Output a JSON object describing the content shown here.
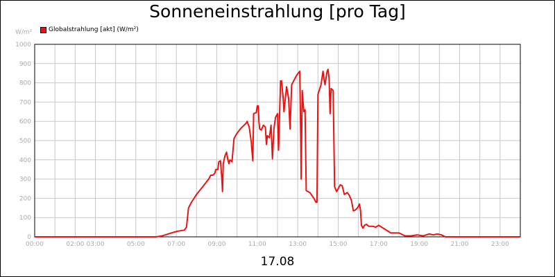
{
  "chart_data": {
    "type": "line",
    "title": "Sonneneinstrahlung [pro Tag]",
    "unit_label": "W/m²",
    "date_label": "17.08",
    "series": [
      {
        "name": "Globalstrahlung [akt] (W/m²)",
        "color": "#ee1111",
        "points": [
          [
            0,
            0
          ],
          [
            6.0,
            0
          ],
          [
            6.3,
            5
          ],
          [
            6.6,
            15
          ],
          [
            6.9,
            25
          ],
          [
            7.1,
            30
          ],
          [
            7.4,
            35
          ],
          [
            7.5,
            50
          ],
          [
            7.6,
            150
          ],
          [
            7.75,
            180
          ],
          [
            8.0,
            220
          ],
          [
            8.3,
            260
          ],
          [
            8.6,
            300
          ],
          [
            8.7,
            320
          ],
          [
            8.8,
            320
          ],
          [
            8.9,
            330
          ],
          [
            8.95,
            350
          ],
          [
            9.05,
            350
          ],
          [
            9.1,
            390
          ],
          [
            9.18,
            395
          ],
          [
            9.2,
            370
          ],
          [
            9.25,
            300
          ],
          [
            9.28,
            235
          ],
          [
            9.32,
            380
          ],
          [
            9.4,
            420
          ],
          [
            9.48,
            440
          ],
          [
            9.55,
            400
          ],
          [
            9.6,
            380
          ],
          [
            9.65,
            400
          ],
          [
            9.75,
            390
          ],
          [
            9.85,
            510
          ],
          [
            9.95,
            530
          ],
          [
            10.05,
            545
          ],
          [
            10.2,
            565
          ],
          [
            10.3,
            575
          ],
          [
            10.45,
            590
          ],
          [
            10.5,
            600
          ],
          [
            10.6,
            570
          ],
          [
            10.7,
            495
          ],
          [
            10.78,
            395
          ],
          [
            10.82,
            640
          ],
          [
            10.95,
            645
          ],
          [
            11.0,
            680
          ],
          [
            11.05,
            680
          ],
          [
            11.08,
            600
          ],
          [
            11.12,
            560
          ],
          [
            11.2,
            555
          ],
          [
            11.3,
            580
          ],
          [
            11.4,
            570
          ],
          [
            11.45,
            480
          ],
          [
            11.5,
            525
          ],
          [
            11.6,
            515
          ],
          [
            11.68,
            580
          ],
          [
            11.75,
            405
          ],
          [
            11.82,
            560
          ],
          [
            11.9,
            620
          ],
          [
            12.0,
            640
          ],
          [
            12.05,
            450
          ],
          [
            12.15,
            810
          ],
          [
            12.2,
            810
          ],
          [
            12.28,
            720
          ],
          [
            12.32,
            650
          ],
          [
            12.45,
            780
          ],
          [
            12.55,
            720
          ],
          [
            12.62,
            560
          ],
          [
            12.7,
            790
          ],
          [
            12.8,
            810
          ],
          [
            12.95,
            840
          ],
          [
            13.1,
            860
          ],
          [
            13.15,
            520
          ],
          [
            13.17,
            300
          ],
          [
            13.22,
            760
          ],
          [
            13.3,
            650
          ],
          [
            13.36,
            660
          ],
          [
            13.42,
            240
          ],
          [
            13.6,
            230
          ],
          [
            13.8,
            200
          ],
          [
            13.9,
            180
          ],
          [
            13.95,
            180
          ],
          [
            14.0,
            740
          ],
          [
            14.15,
            790
          ],
          [
            14.25,
            860
          ],
          [
            14.3,
            820
          ],
          [
            14.35,
            790
          ],
          [
            14.45,
            860
          ],
          [
            14.5,
            870
          ],
          [
            14.55,
            820
          ],
          [
            14.6,
            640
          ],
          [
            14.65,
            770
          ],
          [
            14.75,
            760
          ],
          [
            14.82,
            260
          ],
          [
            14.92,
            235
          ],
          [
            15.0,
            250
          ],
          [
            15.1,
            270
          ],
          [
            15.2,
            265
          ],
          [
            15.3,
            220
          ],
          [
            15.45,
            230
          ],
          [
            15.55,
            215
          ],
          [
            15.65,
            190
          ],
          [
            15.75,
            135
          ],
          [
            15.85,
            140
          ],
          [
            15.95,
            150
          ],
          [
            16.05,
            170
          ],
          [
            16.1,
            140
          ],
          [
            16.15,
            60
          ],
          [
            16.22,
            45
          ],
          [
            16.3,
            60
          ],
          [
            16.4,
            65
          ],
          [
            16.5,
            55
          ],
          [
            16.6,
            55
          ],
          [
            16.7,
            55
          ],
          [
            16.85,
            50
          ],
          [
            17.0,
            60
          ],
          [
            17.3,
            40
          ],
          [
            17.6,
            20
          ],
          [
            18.0,
            20
          ],
          [
            18.3,
            5
          ],
          [
            18.6,
            5
          ],
          [
            18.9,
            10
          ],
          [
            19.2,
            5
          ],
          [
            19.5,
            15
          ],
          [
            19.7,
            10
          ],
          [
            19.9,
            15
          ],
          [
            20.1,
            10
          ],
          [
            20.3,
            0
          ],
          [
            24,
            0
          ]
        ]
      }
    ],
    "x_min": 0,
    "x_max": 24,
    "y_min": 0,
    "y_max": 1000,
    "y_ticks": [
      0,
      100,
      200,
      300,
      400,
      500,
      600,
      700,
      800,
      900,
      1000
    ],
    "x_ticks": [
      {
        "v": 0,
        "label": "00:00"
      },
      {
        "v": 2,
        "label": "02:00"
      },
      {
        "v": 3,
        "label": "03:00"
      },
      {
        "v": 5,
        "label": "05:00"
      },
      {
        "v": 7,
        "label": "07:00"
      },
      {
        "v": 9,
        "label": "09:00"
      },
      {
        "v": 11,
        "label": "11:00"
      },
      {
        "v": 13,
        "label": "13:00"
      },
      {
        "v": 15,
        "label": "15:00"
      },
      {
        "v": 17,
        "label": "17:00"
      },
      {
        "v": 19,
        "label": "19:00"
      },
      {
        "v": 21,
        "label": "21:00"
      },
      {
        "v": 23,
        "label": "23:00"
      }
    ],
    "grid": true,
    "legend_position": "top-left"
  }
}
